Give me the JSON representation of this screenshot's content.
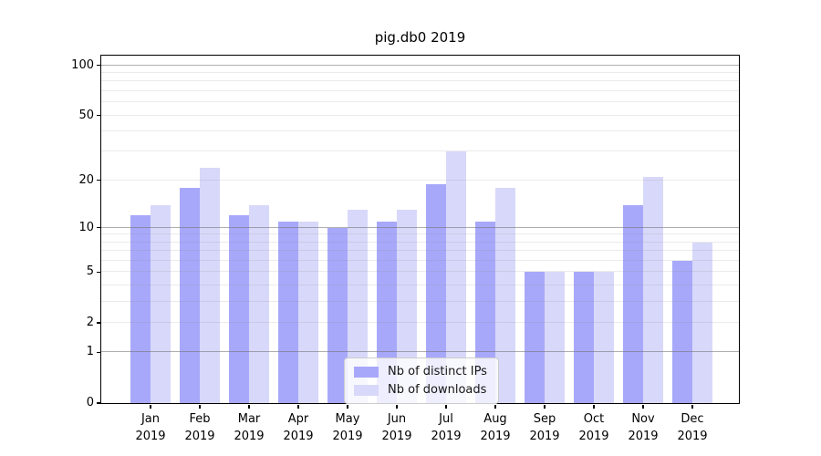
{
  "title": "pig.db0 2019",
  "chart_data": {
    "type": "bar",
    "title": "pig.db0 2019",
    "categories": [
      "Jan",
      "Feb",
      "Mar",
      "Apr",
      "May",
      "Jun",
      "Jul",
      "Aug",
      "Sep",
      "Oct",
      "Nov",
      "Dec"
    ],
    "category_year": "2019",
    "series": [
      {
        "name": "Nb of distinct IPs",
        "color": "#a8a8fa",
        "values": [
          12,
          18,
          12,
          11,
          10,
          11,
          19,
          11,
          5,
          5,
          14,
          6
        ]
      },
      {
        "name": "Nb of downloads",
        "color": "#d8d8fa",
        "values": [
          14,
          24,
          14,
          11,
          13,
          13,
          30,
          18,
          5,
          5,
          21,
          8
        ]
      }
    ],
    "yscale": "log(value+1)",
    "ylim": [
      0,
      113
    ],
    "y_ticks": [
      0,
      1,
      2,
      5,
      10,
      20,
      50,
      100
    ],
    "y_major_gridlines": [
      1,
      10,
      100
    ],
    "y_minor_gridlines": [
      2,
      3,
      4,
      5,
      6,
      7,
      8,
      9,
      20,
      30,
      40,
      50,
      60,
      70,
      80,
      90
    ],
    "grid": "on",
    "legend_position": "lower center",
    "xlabel": "",
    "ylabel": ""
  },
  "legend": {
    "items": [
      {
        "label": "Nb of distinct IPs",
        "color": "#a8a8fa"
      },
      {
        "label": "Nb of downloads",
        "color": "#d8d8fa"
      }
    ]
  }
}
